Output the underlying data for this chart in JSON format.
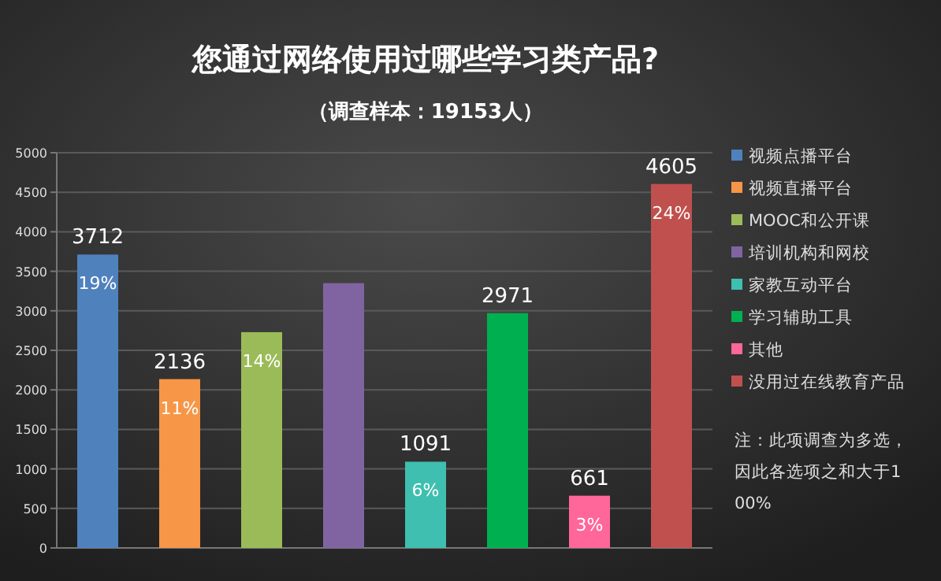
{
  "chart_data": {
    "type": "bar",
    "title": "您通过网络使用过哪些学习类产品?",
    "subtitle": "（调查样本：19153人）",
    "categories": [
      null
    ],
    "series": [
      {
        "name": "视频点播平台",
        "color": "#4f81bd",
        "values": [
          3712
        ],
        "value_labels": [
          "3712"
        ]
      },
      {
        "name": "视频直播平台",
        "color": "#f79646",
        "values": [
          2136
        ],
        "value_labels": [
          "2136"
        ]
      },
      {
        "name": "MOOC和公开课",
        "color": "#9bbb59",
        "values": [
          2730
        ],
        "value_labels": [
          null
        ]
      },
      {
        "name": "培训机构和网校",
        "color": "#8064a2",
        "values": [
          3350
        ],
        "value_labels": [
          null
        ]
      },
      {
        "name": "家教互动平台",
        "color": "#3fbfb0",
        "values": [
          1091
        ],
        "value_labels": [
          "1091"
        ]
      },
      {
        "name": "学习辅助工具",
        "color": "#00b050",
        "values": [
          2971
        ],
        "value_labels": [
          "2971"
        ]
      },
      {
        "name": "其他",
        "color": "#ff6699",
        "values": [
          661
        ],
        "value_labels": [
          "661"
        ]
      },
      {
        "name": "没用过在线教育产品",
        "color": "#c0504d",
        "values": [
          4605
        ],
        "value_labels": [
          "4605"
        ]
      }
    ],
    "ylim": [
      0,
      5000
    ],
    "yticks": [
      0,
      500,
      1000,
      1500,
      2000,
      2500,
      3000,
      3500,
      4000,
      4500,
      5000
    ],
    "grid": "y",
    "legend": "right",
    "annotations": [
      {
        "text": "19%",
        "y": 3712
      },
      {
        "text": "11%",
        "y": 2136
      },
      {
        "text": "14%",
        "y": 2730
      },
      {
        "text": "6%",
        "y": 1091
      },
      {
        "text": "3%",
        "y": 661
      },
      {
        "text": "24%",
        "y": 4605
      },
      "注：此项调查为多选，因此各选项之和大于100%"
    ]
  }
}
